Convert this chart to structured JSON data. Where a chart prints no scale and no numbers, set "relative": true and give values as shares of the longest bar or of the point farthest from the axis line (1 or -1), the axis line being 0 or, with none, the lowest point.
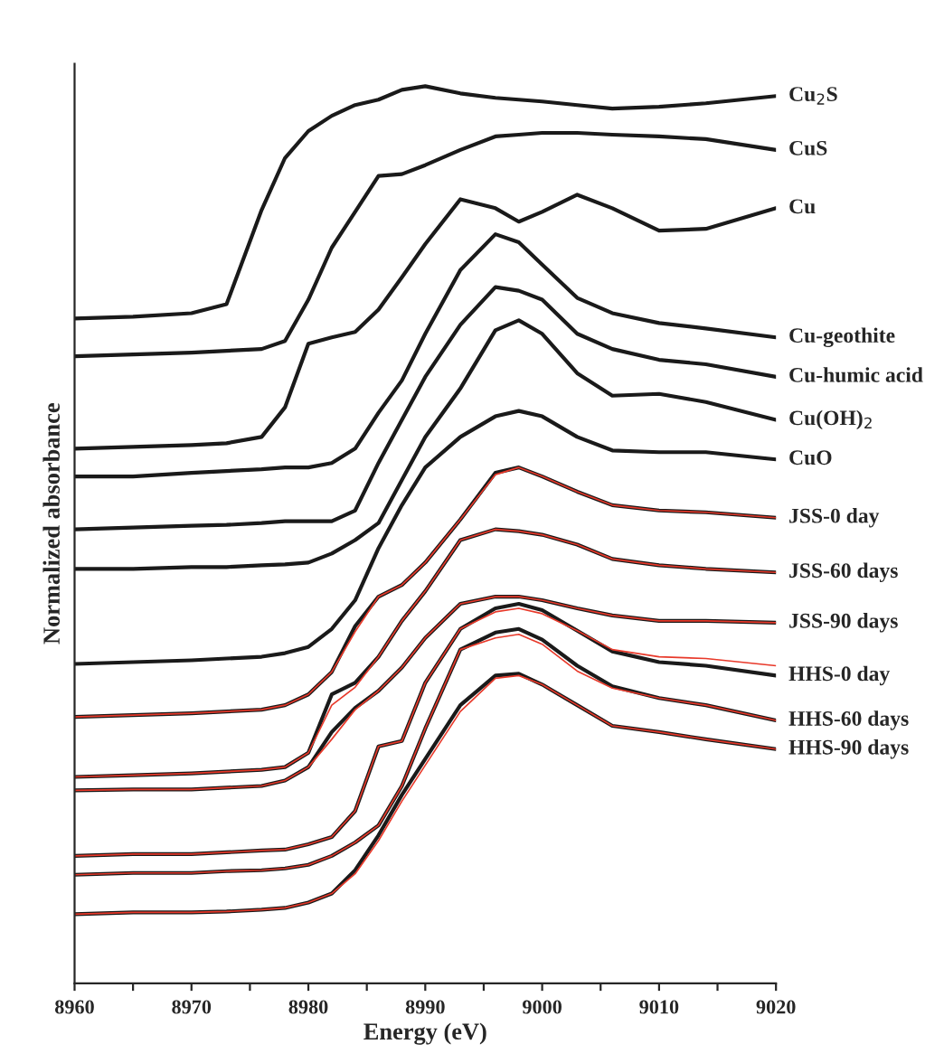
{
  "chart_data": {
    "type": "line",
    "relative": true,
    "xlabel": "Energy (eV)",
    "ylabel": "Normalized absorbance",
    "x": [
      8960,
      8965,
      8970,
      8973,
      8976,
      8978,
      8980,
      8982,
      8984,
      8986,
      8988,
      8990,
      8993,
      8996,
      8998,
      9000,
      9003,
      9006,
      9010,
      9014,
      9020
    ],
    "xlim": [
      8960,
      9020
    ],
    "xticks": [
      8960,
      {
        "value": 8965,
        "label": null
      },
      8970,
      {
        "value": 8975,
        "label": null
      },
      8980,
      {
        "value": 8985,
        "label": null
      },
      8990,
      {
        "value": 8995,
        "label": null
      },
      9000,
      {
        "value": 9005,
        "label": null
      },
      9010,
      {
        "value": 9015,
        "label": null
      },
      9020
    ],
    "tick_labels": "x",
    "grid": false,
    "legend": false,
    "series": [
      {
        "name": "Cu$_{2}$S",
        "color": "#1a1a1a",
        "values": [
          0.741,
          0.743,
          0.747,
          0.757,
          0.862,
          0.92,
          0.95,
          0.967,
          0.979,
          0.985,
          0.996,
          1.0,
          0.992,
          0.987,
          0.985,
          0.983,
          0.979,
          0.975,
          0.977,
          0.981,
          0.989
        ]
      },
      {
        "name": "CuS",
        "color": "#1a1a1a",
        "values": [
          0.699,
          0.701,
          0.703,
          0.705,
          0.707,
          0.716,
          0.762,
          0.82,
          0.86,
          0.9,
          0.902,
          0.912,
          0.929,
          0.944,
          0.946,
          0.948,
          0.948,
          0.946,
          0.944,
          0.941,
          0.929
        ]
      },
      {
        "name": "Cu",
        "color": "#1a1a1a",
        "values": [
          0.596,
          0.598,
          0.6,
          0.602,
          0.609,
          0.642,
          0.713,
          0.72,
          0.726,
          0.751,
          0.787,
          0.824,
          0.874,
          0.864,
          0.849,
          0.86,
          0.879,
          0.864,
          0.839,
          0.841,
          0.864
        ]
      },
      {
        "name": "Cu-geothite",
        "color": "#1a1a1a",
        "values": [
          0.565,
          0.565,
          0.569,
          0.571,
          0.573,
          0.575,
          0.575,
          0.58,
          0.596,
          0.636,
          0.672,
          0.724,
          0.795,
          0.835,
          0.826,
          0.801,
          0.764,
          0.747,
          0.736,
          0.73,
          0.72
        ]
      },
      {
        "name": "Cu-humic acid",
        "color": "#1a1a1a",
        "values": [
          0.506,
          0.508,
          0.51,
          0.511,
          0.513,
          0.515,
          0.515,
          0.515,
          0.527,
          0.58,
          0.628,
          0.676,
          0.734,
          0.776,
          0.772,
          0.762,
          0.724,
          0.707,
          0.695,
          0.69,
          0.676
        ]
      },
      {
        "name": "Cu(OH)$_{2}$",
        "color": "#1a1a1a",
        "values": [
          0.462,
          0.462,
          0.464,
          0.464,
          0.466,
          0.467,
          0.469,
          0.479,
          0.494,
          0.513,
          0.561,
          0.609,
          0.663,
          0.728,
          0.739,
          0.724,
          0.68,
          0.655,
          0.657,
          0.648,
          0.628
        ]
      },
      {
        "name": "CuO",
        "color": "#1a1a1a",
        "values": [
          0.356,
          0.358,
          0.36,
          0.362,
          0.364,
          0.368,
          0.375,
          0.395,
          0.427,
          0.485,
          0.533,
          0.575,
          0.609,
          0.632,
          0.638,
          0.632,
          0.609,
          0.594,
          0.592,
          0.592,
          0.584
        ]
      },
      {
        "name": "JSS-0 day",
        "color": "#1a1a1a",
        "values": [
          0.297,
          0.299,
          0.301,
          0.303,
          0.305,
          0.31,
          0.322,
          0.347,
          0.398,
          0.431,
          0.444,
          0.469,
          0.517,
          0.569,
          0.575,
          0.565,
          0.548,
          0.533,
          0.527,
          0.525,
          0.519
        ]
      },
      {
        "color": "#e8392a",
        "values": [
          0.297,
          0.299,
          0.301,
          0.303,
          0.305,
          0.31,
          0.322,
          0.347,
          0.392,
          0.431,
          0.444,
          0.469,
          0.517,
          0.567,
          0.575,
          0.565,
          0.548,
          0.533,
          0.527,
          0.525,
          0.519
        ]
      },
      {
        "name": "JSS-60 days",
        "color": "#1a1a1a",
        "values": [
          0.23,
          0.232,
          0.234,
          0.236,
          0.238,
          0.241,
          0.257,
          0.322,
          0.335,
          0.364,
          0.404,
          0.437,
          0.494,
          0.506,
          0.504,
          0.5,
          0.489,
          0.473,
          0.466,
          0.462,
          0.458
        ]
      },
      {
        "color": "#e8392a",
        "values": [
          0.23,
          0.232,
          0.234,
          0.236,
          0.238,
          0.241,
          0.257,
          0.31,
          0.33,
          0.364,
          0.404,
          0.437,
          0.494,
          0.506,
          0.504,
          0.5,
          0.489,
          0.473,
          0.466,
          0.462,
          0.458
        ]
      },
      {
        "name": "JSS-90 days",
        "color": "#1a1a1a",
        "values": [
          0.215,
          0.216,
          0.216,
          0.218,
          0.22,
          0.226,
          0.241,
          0.28,
          0.307,
          0.326,
          0.352,
          0.385,
          0.423,
          0.431,
          0.431,
          0.427,
          0.418,
          0.41,
          0.404,
          0.404,
          0.402
        ]
      },
      {
        "color": "#e8392a",
        "values": [
          0.215,
          0.216,
          0.216,
          0.218,
          0.22,
          0.226,
          0.241,
          0.272,
          0.305,
          0.326,
          0.352,
          0.385,
          0.423,
          0.431,
          0.431,
          0.427,
          0.418,
          0.41,
          0.404,
          0.404,
          0.402
        ]
      },
      {
        "name": "HHS-0 day",
        "color": "#1a1a1a",
        "values": [
          0.142,
          0.144,
          0.144,
          0.146,
          0.148,
          0.149,
          0.155,
          0.163,
          0.192,
          0.264,
          0.27,
          0.335,
          0.395,
          0.418,
          0.423,
          0.416,
          0.393,
          0.37,
          0.358,
          0.354,
          0.343
        ]
      },
      {
        "color": "#e8392a",
        "values": [
          0.142,
          0.144,
          0.144,
          0.146,
          0.148,
          0.149,
          0.155,
          0.163,
          0.192,
          0.264,
          0.27,
          0.335,
          0.395,
          0.414,
          0.418,
          0.412,
          0.393,
          0.372,
          0.364,
          0.362,
          0.354
        ]
      },
      {
        "name": "HHS-60 days",
        "color": "#1a1a1a",
        "values": [
          0.121,
          0.123,
          0.123,
          0.125,
          0.126,
          0.128,
          0.132,
          0.142,
          0.157,
          0.176,
          0.22,
          0.284,
          0.372,
          0.391,
          0.395,
          0.383,
          0.354,
          0.331,
          0.318,
          0.31,
          0.293
        ]
      },
      {
        "color": "#e8392a",
        "values": [
          0.121,
          0.123,
          0.123,
          0.125,
          0.126,
          0.128,
          0.132,
          0.142,
          0.157,
          0.176,
          0.22,
          0.284,
          0.372,
          0.385,
          0.389,
          0.378,
          0.348,
          0.329,
          0.318,
          0.31,
          0.293
        ]
      },
      {
        "name": "HHS-90 days",
        "color": "#1a1a1a",
        "values": [
          0.077,
          0.079,
          0.079,
          0.08,
          0.082,
          0.084,
          0.09,
          0.1,
          0.126,
          0.165,
          0.21,
          0.25,
          0.31,
          0.343,
          0.345,
          0.333,
          0.31,
          0.287,
          0.28,
          0.272,
          0.261
        ]
      },
      {
        "color": "#e8392a",
        "values": [
          0.077,
          0.079,
          0.079,
          0.08,
          0.082,
          0.084,
          0.09,
          0.1,
          0.122,
          0.159,
          0.203,
          0.243,
          0.303,
          0.34,
          0.343,
          0.333,
          0.31,
          0.287,
          0.28,
          0.272,
          0.261
        ]
      }
    ]
  }
}
